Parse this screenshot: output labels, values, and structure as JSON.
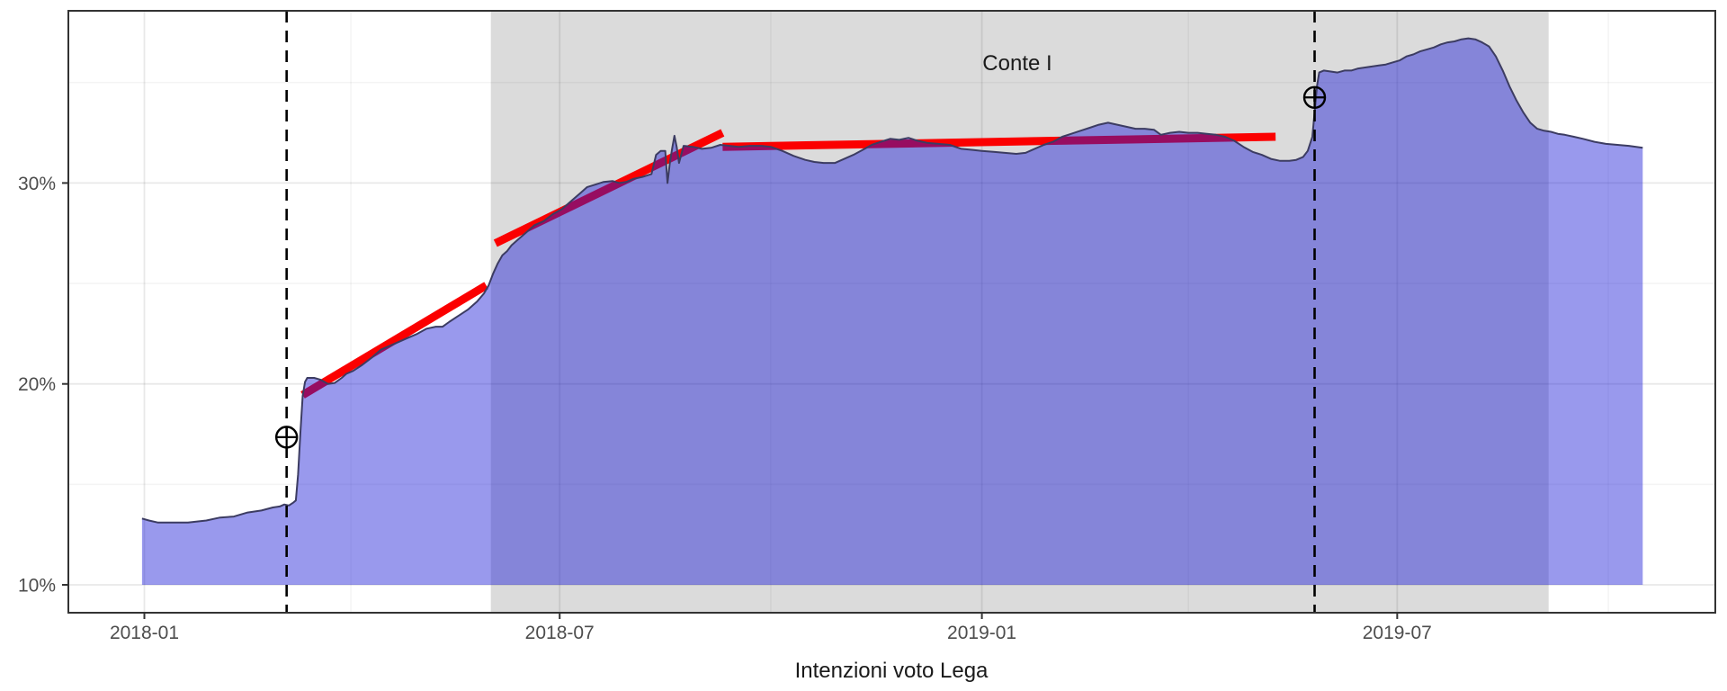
{
  "chart_data": {
    "type": "area",
    "title": "",
    "xlabel": "Intenzioni voto Lega",
    "ylabel": "",
    "x_epoch": "2018-01-01",
    "x_units": "days since 2018-01-01",
    "ylim": [
      8.4,
      38.8
    ],
    "grid": "on",
    "legend": "none",
    "y_ticks": [
      {
        "label": "10%",
        "value": 10
      },
      {
        "label": "20%",
        "value": 20
      },
      {
        "label": "30%",
        "value": 30
      }
    ],
    "y_minor": [
      15,
      25,
      35
    ],
    "x_ticks": [
      {
        "label": "2018-01",
        "day": 0
      },
      {
        "label": "2018-07",
        "day": 181
      },
      {
        "label": "2019-01",
        "day": 365
      },
      {
        "label": "2019-07",
        "day": 546
      }
    ],
    "x_minor_days": [
      90,
      273,
      455,
      638
    ],
    "regions": [
      {
        "label": "Conte I",
        "start_day": 151,
        "start_date": "2018-06-01",
        "end_day": 612,
        "end_date": "2019-09-05",
        "color": "#dbdbdb"
      }
    ],
    "annotation_label": "Conte I",
    "event_lines": [
      {
        "day": 62,
        "date": "2018-03-04",
        "style": "dashed"
      },
      {
        "day": 510,
        "date": "2019-05-26",
        "style": "dashed"
      }
    ],
    "event_markers": [
      {
        "day": 62,
        "date": "2018-03-04",
        "value": 17.35,
        "symbol": "circle-plus"
      },
      {
        "day": 510,
        "date": "2019-05-26",
        "value": 34.26,
        "symbol": "circle-plus"
      }
    ],
    "trend_segments": [
      {
        "from": [
          69,
          19.45
        ],
        "to": [
          149,
          24.9
        ]
      },
      {
        "from": [
          153,
          27.0
        ],
        "to": [
          252,
          32.5
        ]
      },
      {
        "from": [
          252,
          31.8
        ],
        "to": [
          493,
          32.3
        ]
      }
    ],
    "series": [
      {
        "name": "Lega",
        "points": [
          [
            -1,
            13.3
          ],
          [
            2,
            13.2
          ],
          [
            6,
            13.1
          ],
          [
            12,
            13.1
          ],
          [
            19,
            13.1
          ],
          [
            27,
            13.2
          ],
          [
            33,
            13.35
          ],
          [
            39,
            13.4
          ],
          [
            45,
            13.6
          ],
          [
            51,
            13.7
          ],
          [
            56,
            13.85
          ],
          [
            59,
            13.9
          ],
          [
            61,
            14.0
          ],
          [
            63,
            13.95
          ],
          [
            65,
            14.1
          ],
          [
            66,
            14.2
          ],
          [
            67,
            15.5
          ],
          [
            68,
            17.6
          ],
          [
            69,
            19.4
          ],
          [
            70,
            20.1
          ],
          [
            71,
            20.3
          ],
          [
            74,
            20.3
          ],
          [
            77,
            20.2
          ],
          [
            80,
            20.0
          ],
          [
            83,
            20.05
          ],
          [
            86,
            20.3
          ],
          [
            88,
            20.5
          ],
          [
            91,
            20.65
          ],
          [
            95,
            20.95
          ],
          [
            99,
            21.3
          ],
          [
            103,
            21.7
          ],
          [
            107,
            21.9
          ],
          [
            111,
            22.1
          ],
          [
            115,
            22.3
          ],
          [
            119,
            22.5
          ],
          [
            123,
            22.75
          ],
          [
            127,
            22.85
          ],
          [
            130,
            22.85
          ],
          [
            133,
            23.1
          ],
          [
            137,
            23.4
          ],
          [
            141,
            23.7
          ],
          [
            145,
            24.1
          ],
          [
            148,
            24.5
          ],
          [
            150,
            24.9
          ],
          [
            152,
            25.5
          ],
          [
            154,
            26.0
          ],
          [
            156,
            26.4
          ],
          [
            158,
            26.6
          ],
          [
            160,
            26.9
          ],
          [
            163,
            27.2
          ],
          [
            166,
            27.5
          ],
          [
            170,
            27.9
          ],
          [
            174,
            28.1
          ],
          [
            178,
            28.45
          ],
          [
            182,
            28.7
          ],
          [
            186,
            29.1
          ],
          [
            190,
            29.5
          ],
          [
            193,
            29.8
          ],
          [
            196,
            29.9
          ],
          [
            200,
            30.05
          ],
          [
            204,
            30.1
          ],
          [
            207,
            30.0
          ],
          [
            210,
            30.05
          ],
          [
            213,
            30.2
          ],
          [
            217,
            30.3
          ],
          [
            221,
            30.45
          ],
          [
            223,
            31.4
          ],
          [
            225,
            31.6
          ],
          [
            227,
            31.6
          ],
          [
            228,
            30.0
          ],
          [
            229,
            31.0
          ],
          [
            230,
            31.7
          ],
          [
            231,
            32.35
          ],
          [
            232,
            31.8
          ],
          [
            233,
            31.0
          ],
          [
            235,
            31.85
          ],
          [
            239,
            31.8
          ],
          [
            243,
            31.7
          ],
          [
            247,
            31.75
          ],
          [
            251,
            31.9
          ],
          [
            255,
            31.85
          ],
          [
            259,
            31.8
          ],
          [
            264,
            31.85
          ],
          [
            269,
            31.85
          ],
          [
            273,
            31.8
          ],
          [
            278,
            31.6
          ],
          [
            283,
            31.35
          ],
          [
            288,
            31.15
          ],
          [
            292,
            31.05
          ],
          [
            296,
            31.0
          ],
          [
            301,
            31.0
          ],
          [
            305,
            31.2
          ],
          [
            309,
            31.4
          ],
          [
            313,
            31.65
          ],
          [
            317,
            31.9
          ],
          [
            321,
            32.05
          ],
          [
            325,
            32.2
          ],
          [
            329,
            32.15
          ],
          [
            333,
            32.25
          ],
          [
            337,
            32.1
          ],
          [
            341,
            32.0
          ],
          [
            346,
            31.95
          ],
          [
            351,
            31.9
          ],
          [
            356,
            31.7
          ],
          [
            361,
            31.65
          ],
          [
            365,
            31.6
          ],
          [
            370,
            31.55
          ],
          [
            375,
            31.5
          ],
          [
            380,
            31.45
          ],
          [
            384,
            31.5
          ],
          [
            388,
            31.7
          ],
          [
            392,
            31.9
          ],
          [
            396,
            32.05
          ],
          [
            400,
            32.3
          ],
          [
            404,
            32.45
          ],
          [
            408,
            32.6
          ],
          [
            412,
            32.75
          ],
          [
            416,
            32.9
          ],
          [
            420,
            33.0
          ],
          [
            424,
            32.9
          ],
          [
            428,
            32.8
          ],
          [
            432,
            32.7
          ],
          [
            436,
            32.7
          ],
          [
            440,
            32.65
          ],
          [
            443,
            32.4
          ],
          [
            447,
            32.5
          ],
          [
            451,
            32.55
          ],
          [
            455,
            32.5
          ],
          [
            459,
            32.5
          ],
          [
            463,
            32.45
          ],
          [
            467,
            32.4
          ],
          [
            471,
            32.3
          ],
          [
            475,
            32.1
          ],
          [
            479,
            31.8
          ],
          [
            483,
            31.55
          ],
          [
            487,
            31.4
          ],
          [
            491,
            31.2
          ],
          [
            495,
            31.1
          ],
          [
            499,
            31.1
          ],
          [
            502,
            31.15
          ],
          [
            505,
            31.3
          ],
          [
            507,
            31.6
          ],
          [
            509,
            32.3
          ],
          [
            510,
            33.5
          ],
          [
            511,
            34.8
          ],
          [
            512,
            35.5
          ],
          [
            514,
            35.6
          ],
          [
            517,
            35.55
          ],
          [
            520,
            35.5
          ],
          [
            523,
            35.6
          ],
          [
            526,
            35.6
          ],
          [
            529,
            35.7
          ],
          [
            532,
            35.75
          ],
          [
            535,
            35.8
          ],
          [
            538,
            35.85
          ],
          [
            541,
            35.9
          ],
          [
            544,
            36.0
          ],
          [
            547,
            36.1
          ],
          [
            550,
            36.3
          ],
          [
            553,
            36.4
          ],
          [
            556,
            36.55
          ],
          [
            559,
            36.65
          ],
          [
            562,
            36.75
          ],
          [
            565,
            36.9
          ],
          [
            568,
            37.0
          ],
          [
            571,
            37.05
          ],
          [
            574,
            37.15
          ],
          [
            577,
            37.2
          ],
          [
            580,
            37.15
          ],
          [
            583,
            37.0
          ],
          [
            586,
            36.8
          ],
          [
            589,
            36.3
          ],
          [
            592,
            35.6
          ],
          [
            595,
            34.8
          ],
          [
            598,
            34.1
          ],
          [
            601,
            33.5
          ],
          [
            604,
            33.0
          ],
          [
            607,
            32.7
          ],
          [
            610,
            32.6
          ],
          [
            613,
            32.55
          ],
          [
            616,
            32.45
          ],
          [
            619,
            32.4
          ],
          [
            623,
            32.3
          ],
          [
            627,
            32.2
          ],
          [
            632,
            32.05
          ],
          [
            637,
            31.95
          ],
          [
            642,
            31.9
          ],
          [
            647,
            31.85
          ],
          [
            653,
            31.75
          ]
        ]
      }
    ],
    "colors": {
      "area_fill": "rgba(28,28,214,0.45)",
      "area_outline": "#3c3c62",
      "trend": "#fb0000",
      "band": "#dbdbdb",
      "event_line": "#000000",
      "marker": "#000000",
      "grid_major": "rgba(0,0,0,0.09)",
      "grid_minor": "rgba(0,0,0,0.045)",
      "panel_border": "#333333",
      "tick_mark": "#333333",
      "tick_text": "#4d4d4d",
      "label_text": "#1a1a1a"
    }
  }
}
